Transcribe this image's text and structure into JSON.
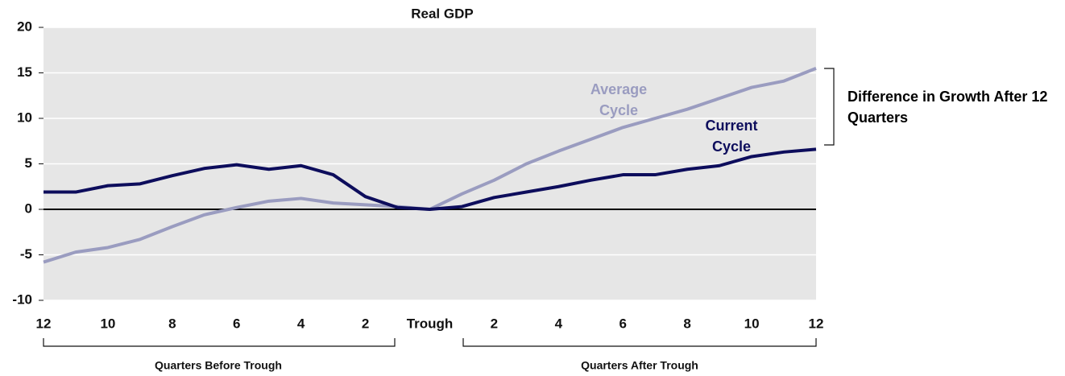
{
  "chart_data": {
    "type": "line",
    "title": "Real GDP",
    "categories": [
      "12",
      null,
      "10",
      null,
      "8",
      null,
      "6",
      null,
      "4",
      null,
      "2",
      null,
      "Trough",
      null,
      "2",
      null,
      "4",
      null,
      "6",
      null,
      "8",
      null,
      "10",
      null,
      "12"
    ],
    "series": [
      {
        "name": "Current Cycle",
        "color": "#0d0d5c",
        "values": [
          1.9,
          1.9,
          2.6,
          2.8,
          3.7,
          4.5,
          4.9,
          4.4,
          4.8,
          3.8,
          1.4,
          0.2,
          0,
          0.3,
          1.3,
          1.9,
          2.5,
          3.2,
          3.8,
          3.8,
          4.4,
          4.8,
          5.8,
          6.3,
          6.6
        ]
      },
      {
        "name": "Average Cycle",
        "color": "#9a9cc0",
        "values": [
          -5.8,
          -4.7,
          -4.2,
          -3.3,
          -1.9,
          -0.6,
          0.2,
          0.9,
          1.2,
          0.7,
          0.5,
          0.3,
          0,
          1.7,
          3.2,
          5.0,
          6.4,
          7.7,
          9.0,
          10.0,
          11.0,
          12.2,
          13.4,
          14.1,
          15.5
        ]
      }
    ],
    "ylim": [
      -10,
      20
    ],
    "yticks": [
      -10,
      -5,
      0,
      5,
      10,
      15,
      20
    ],
    "grid": true,
    "annotations": [
      "Difference in Growth After 12 Quarters",
      "Quarters Before Trough",
      "Quarters After Trough"
    ]
  }
}
